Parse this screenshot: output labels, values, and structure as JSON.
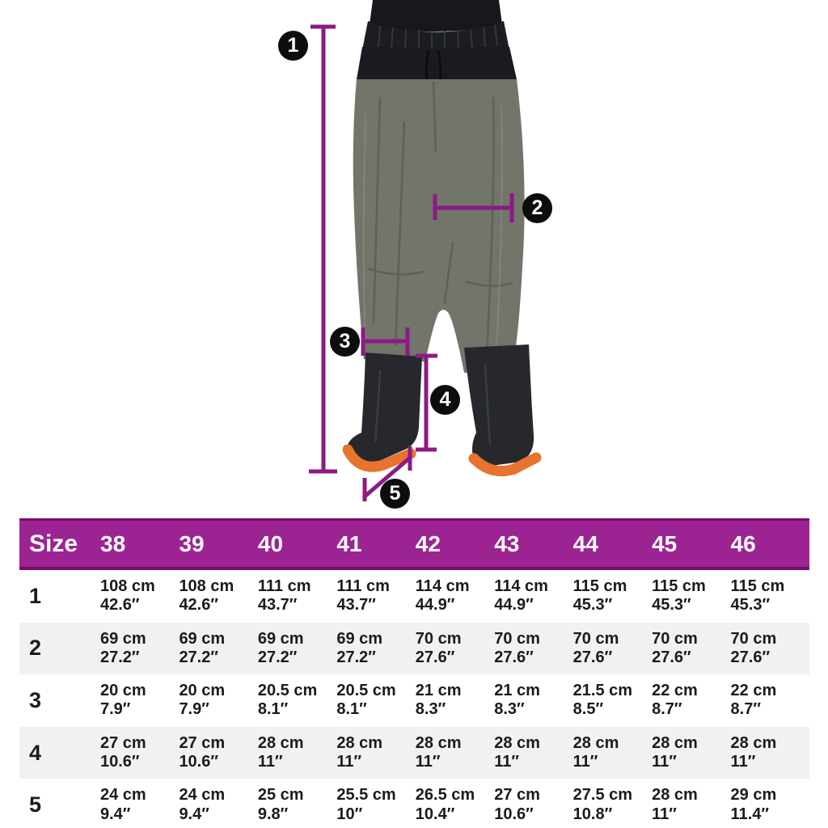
{
  "figure": {
    "markers": [
      {
        "label": "1"
      },
      {
        "label": "2"
      },
      {
        "label": "3"
      },
      {
        "label": "4"
      },
      {
        "label": "5"
      }
    ]
  },
  "table": {
    "size_label": "Size",
    "columns": [
      "38",
      "39",
      "40",
      "41",
      "42",
      "43",
      "44",
      "45",
      "46"
    ],
    "rows": [
      {
        "label": "1",
        "cells": [
          [
            "108 cm",
            "42.6″"
          ],
          [
            "108 cm",
            "42.6″"
          ],
          [
            "111 cm",
            "43.7″"
          ],
          [
            "111 cm",
            "43.7″"
          ],
          [
            "114 cm",
            "44.9″"
          ],
          [
            "114 cm",
            "44.9″"
          ],
          [
            "115 cm",
            "45.3″"
          ],
          [
            "115 cm",
            "45.3″"
          ],
          [
            "115 cm",
            "45.3″"
          ]
        ]
      },
      {
        "label": "2",
        "cells": [
          [
            "69 cm",
            "27.2″"
          ],
          [
            "69 cm",
            "27.2″"
          ],
          [
            "69 cm",
            "27.2″"
          ],
          [
            "69 cm",
            "27.2″"
          ],
          [
            "70 cm",
            "27.6″"
          ],
          [
            "70 cm",
            "27.6″"
          ],
          [
            "70 cm",
            "27.6″"
          ],
          [
            "70 cm",
            "27.6″"
          ],
          [
            "70 cm",
            "27.6″"
          ]
        ]
      },
      {
        "label": "3",
        "cells": [
          [
            "20 cm",
            "7.9″"
          ],
          [
            "20 cm",
            "7.9″"
          ],
          [
            "20.5 cm",
            "8.1″"
          ],
          [
            "20.5 cm",
            "8.1″"
          ],
          [
            "21 cm",
            "8.3″"
          ],
          [
            "21 cm",
            "8.3″"
          ],
          [
            "21.5 cm",
            "8.5″"
          ],
          [
            "22 cm",
            "8.7″"
          ],
          [
            "22 cm",
            "8.7″"
          ]
        ]
      },
      {
        "label": "4",
        "cells": [
          [
            "27 cm",
            "10.6″"
          ],
          [
            "27 cm",
            "10.6″"
          ],
          [
            "28 cm",
            "11″"
          ],
          [
            "28 cm",
            "11″"
          ],
          [
            "28 cm",
            "11″"
          ],
          [
            "28 cm",
            "11″"
          ],
          [
            "28 cm",
            "11″"
          ],
          [
            "28 cm",
            "11″"
          ],
          [
            "28 cm",
            "11″"
          ]
        ]
      },
      {
        "label": "5",
        "cells": [
          [
            "24 cm",
            "9.4″"
          ],
          [
            "24 cm",
            "9.4″"
          ],
          [
            "25 cm",
            "9.8″"
          ],
          [
            "25.5 cm",
            "10″"
          ],
          [
            "26.5 cm",
            "10.4″"
          ],
          [
            "27 cm",
            "10.6″"
          ],
          [
            "27.5 cm",
            "10.8″"
          ],
          [
            "28 cm",
            "11″"
          ],
          [
            "29 cm",
            "11.4″"
          ]
        ]
      }
    ]
  },
  "chart_data": {
    "type": "table",
    "title": "",
    "columns": [
      "Size",
      "38",
      "39",
      "40",
      "41",
      "42",
      "43",
      "44",
      "45",
      "46"
    ],
    "rows_cm": {
      "1": [
        108,
        108,
        111,
        111,
        114,
        114,
        115,
        115,
        115
      ],
      "2": [
        69,
        69,
        69,
        69,
        70,
        70,
        70,
        70,
        70
      ],
      "3": [
        20,
        20,
        20.5,
        20.5,
        21,
        21,
        21.5,
        22,
        22
      ],
      "4": [
        27,
        27,
        28,
        28,
        28,
        28,
        28,
        28,
        28
      ],
      "5": [
        24,
        24,
        25,
        25.5,
        26.5,
        27,
        27.5,
        28,
        29
      ]
    },
    "rows_inch": {
      "1": [
        42.6,
        42.6,
        43.7,
        43.7,
        44.9,
        44.9,
        45.3,
        45.3,
        45.3
      ],
      "2": [
        27.2,
        27.2,
        27.2,
        27.2,
        27.6,
        27.6,
        27.6,
        27.6,
        27.6
      ],
      "3": [
        7.9,
        7.9,
        8.1,
        8.1,
        8.3,
        8.3,
        8.5,
        8.7,
        8.7
      ],
      "4": [
        10.6,
        10.6,
        11,
        11,
        11,
        11,
        11,
        11,
        11
      ],
      "5": [
        9.4,
        9.4,
        9.8,
        10,
        10.4,
        10.6,
        10.8,
        11,
        11.4
      ]
    }
  },
  "colors": {
    "header_purple": "#9c2492",
    "header_border_purple": "#7c0a6d",
    "dimension_line_purple": "#8c1a85",
    "marker_black": "#0d0d0f",
    "row_alt_gray": "#f1f1f2",
    "text_black": "#1b1b1b",
    "trousers_green": "#71756a",
    "boot_black": "#26282d",
    "sole_orange": "#e8732e"
  }
}
